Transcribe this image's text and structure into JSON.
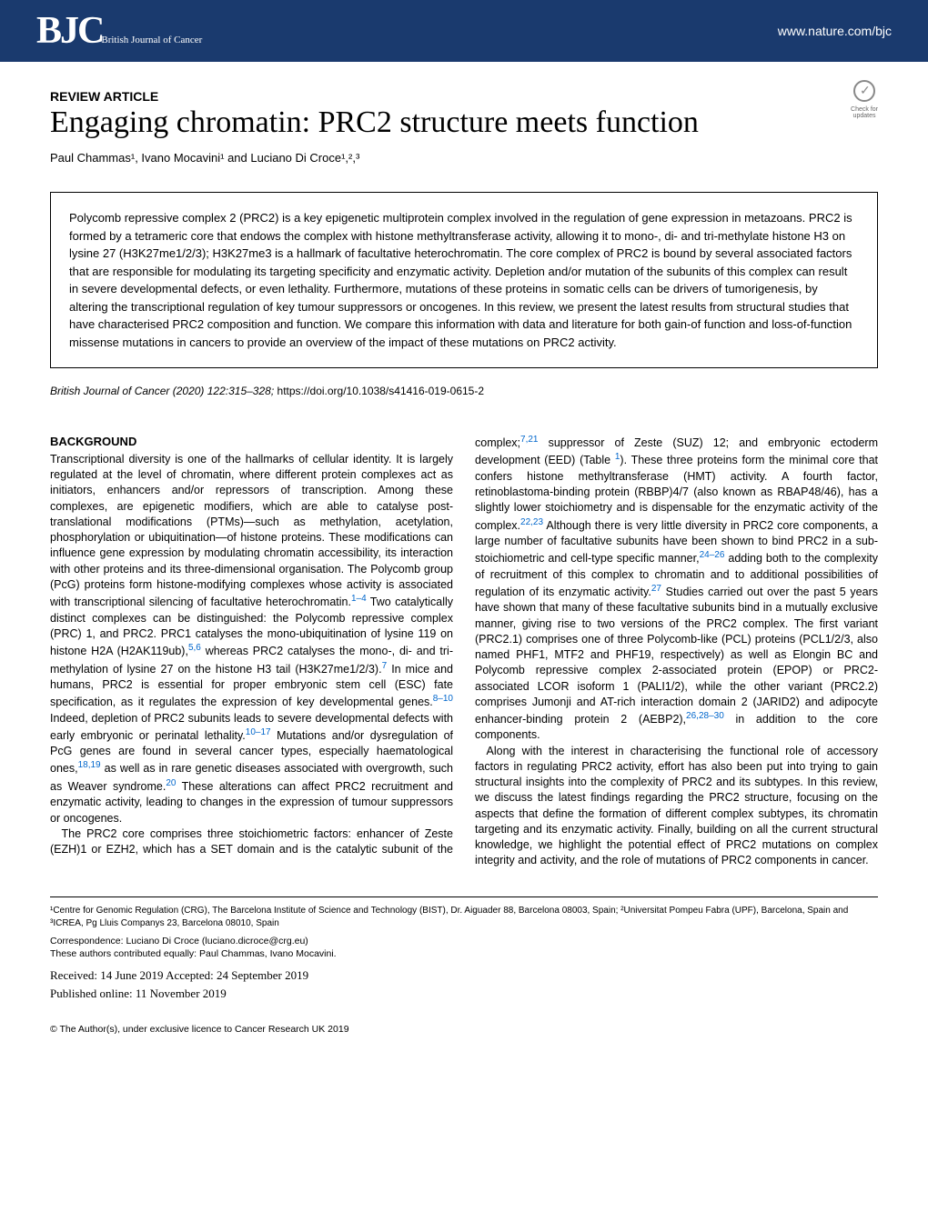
{
  "header": {
    "logo_main": "BJC",
    "logo_sub": "British Journal of Cancer",
    "nature_link": "www.nature.com/bjc"
  },
  "check_updates": {
    "line1": "Check for",
    "line2": "updates"
  },
  "article_type": "REVIEW ARTICLE",
  "title": "Engaging chromatin: PRC2 structure meets function",
  "authors_html": "Paul Chammas¹, Ivano Mocavini¹ and Luciano Di Croce¹,²,³",
  "abstract": "Polycomb repressive complex 2 (PRC2) is a key epigenetic multiprotein complex involved in the regulation of gene expression in metazoans. PRC2 is formed by a tetrameric core that endows the complex with histone methyltransferase activity, allowing it to mono-, di- and tri-methylate histone H3 on lysine 27 (H3K27me1/2/3); H3K27me3 is a hallmark of facultative heterochromatin. The core complex of PRC2 is bound by several associated factors that are responsible for modulating its targeting specificity and enzymatic activity. Depletion and/or mutation of the subunits of this complex can result in severe developmental defects, or even lethality. Furthermore, mutations of these proteins in somatic cells can be drivers of tumorigenesis, by altering the transcriptional regulation of key tumour suppressors or oncogenes. In this review, we present the latest results from structural studies that have characterised PRC2 composition and function. We compare this information with data and literature for both gain-of function and loss-of-function missense mutations in cancers to provide an overview of the impact of these mutations on PRC2 activity.",
  "citation": {
    "journal": "British Journal of Cancer",
    "year_vol": "(2020) 122:315–328;",
    "doi": "https://doi.org/10.1038/s41416-019-0615-2"
  },
  "section_heading": "BACKGROUND",
  "refs": {
    "r1_4": "1–4",
    "r5_6": "5,6",
    "r7": "7",
    "r8_10": "8–10",
    "r10_17": "10–17",
    "r18_19": "18,19",
    "r20": "20",
    "r7_21": "7,21",
    "r22_23": "22,23",
    "r24_26": "24–26",
    "r27": "27",
    "r26_28_30": "26,28–30",
    "table1": "1"
  },
  "body": {
    "p1a": "Transcriptional diversity is one of the hallmarks of cellular identity. It is largely regulated at the level of chromatin, where different protein complexes act as initiators, enhancers and/or repressors of transcription. Among these complexes, are epigenetic modifiers, which are able to catalyse post-translational modifications (PTMs)—such as methylation, acetylation, phosphorylation or ubiquitination—of histone proteins. These modifications can influence gene expression by modulating chromatin accessibility, its interaction with other proteins and its three-dimensional organisation. The Polycomb group (PcG) proteins form histone-modifying complexes whose activity is associated with transcriptional silencing of facultative heterochromatin.",
    "p1b": " Two catalytically distinct complexes can be distinguished: the Polycomb repressive complex (PRC) 1, and PRC2. PRC1 catalyses the mono-ubiquitination of lysine 119 on histone H2A (H2AK119ub),",
    "p1c": " whereas PRC2 catalyses the mono-, di- and tri-methylation of lysine 27 on the histone H3 tail (H3K27me1/2/3).",
    "p1d": " In mice and humans, PRC2 is essential for proper embryonic stem cell (ESC) fate specification, as it regulates the expression of key developmental genes.",
    "p1e": " Indeed, depletion of PRC2 subunits leads to severe developmental defects with early embryonic or perinatal lethality.",
    "p1f": " Mutations and/or dysregulation of PcG genes are found in several cancer types, especially haematological ones,",
    "p1g": " as well as in rare genetic diseases associated with overgrowth, such as Weaver syndrome.",
    "p1h": " These alterations can affect PRC2 recruitment and enzymatic activity, leading to changes in the expression of tumour suppressors or oncogenes.",
    "p2a": "The PRC2 core comprises three stoichiometric factors: enhancer of Zeste (EZH)1 or EZH2, which has a SET domain and is the catalytic subunit of the complex;",
    "p2b": " suppressor of Zeste (SUZ) 12; and embryonic ectoderm development (EED) (Table ",
    "p2c": "). These three proteins form the minimal core that confers histone methyltransferase (HMT) activity. A fourth factor, retinoblastoma-binding protein (RBBP)4/7 (also known as RBAP48/46), has a slightly lower stoichiometry and is dispensable for the enzymatic activity of the complex.",
    "p2d": " Although there is very little diversity in PRC2 core components, a large number of facultative subunits have been shown to bind PRC2 in a sub-stoichiometric and cell-type specific manner,",
    "p2e": " adding both to the complexity of recruitment of this complex to chromatin and to additional possibilities of regulation of its enzymatic activity.",
    "p2f": " Studies carried out over the past 5 years have shown that many of these facultative subunits bind in a mutually exclusive manner, giving rise to two versions of the PRC2 complex. The first variant (PRC2.1) comprises one of three Polycomb-like (PCL) proteins (PCL1/2/3, also named PHF1, MTF2 and PHF19, respectively) as well as Elongin BC and Polycomb repressive complex 2-associated protein (EPOP) or PRC2-associated LCOR isoform 1 (PALI1/2), while the other variant (PRC2.2) comprises Jumonji and AT-rich interaction domain 2 (JARID2) and adipocyte enhancer-binding protein 2 (AEBP2),",
    "p2g": " in addition to the core components.",
    "p3": "Along with the interest in characterising the functional role of accessory factors in regulating PRC2 activity, effort has also been put into trying to gain structural insights into the complexity of PRC2 and its subtypes. In this review, we discuss the latest findings regarding the PRC2 structure, focusing on the aspects that define the formation of different complex subtypes, its chromatin targeting and its enzymatic activity. Finally, building on all the current structural knowledge, we highlight the potential effect of PRC2 mutations on complex integrity and activity, and the role of mutations of PRC2 components in cancer."
  },
  "affiliations": "¹Centre for Genomic Regulation (CRG), The Barcelona Institute of Science and Technology (BIST), Dr. Aiguader 88, Barcelona 08003, Spain; ²Universitat Pompeu Fabra (UPF), Barcelona, Spain and ³ICREA, Pg Lluis Companys 23, Barcelona 08010, Spain",
  "correspondence": "Correspondence: Luciano Di Croce (luciano.dicroce@crg.eu)",
  "equal_contrib": "These authors contributed equally: Paul Chammas, Ivano Mocavini.",
  "received": "Received: 14 June 2019 Accepted: 24 September 2019",
  "published": "Published online: 11 November 2019",
  "copyright": "© The Author(s), under exclusive licence to Cancer Research UK 2019"
}
